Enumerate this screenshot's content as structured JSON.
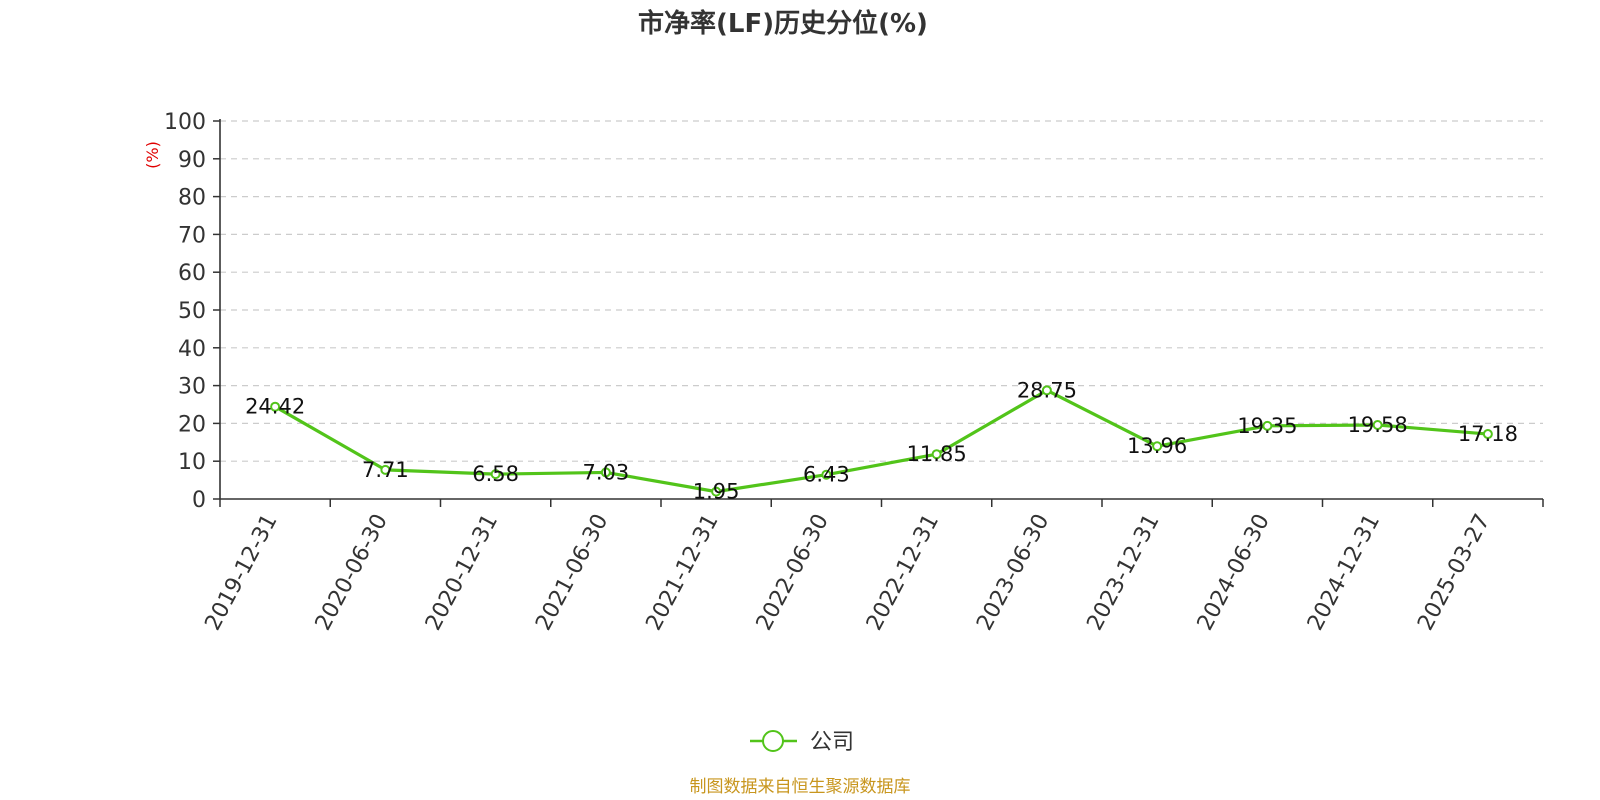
{
  "chart_data": {
    "type": "line",
    "title": "市净率(LF)历史分位(%)",
    "ylabel": "(%)",
    "xlabel": "",
    "ylim": [
      0,
      100
    ],
    "yticks": [
      "0",
      "10",
      "20",
      "30",
      "40",
      "50",
      "60",
      "70",
      "80",
      "90",
      "100"
    ],
    "grid": true,
    "legend_position": "bottom-center",
    "categories": [
      "2019-12-31",
      "2020-06-30",
      "2020-12-31",
      "2021-06-30",
      "2021-12-31",
      "2022-06-30",
      "2022-12-31",
      "2023-06-30",
      "2023-12-31",
      "2024-06-30",
      "2024-12-31",
      "2025-03-27"
    ],
    "series": [
      {
        "name": "公司",
        "color": "#52c41a",
        "values": [
          24.42,
          7.71,
          6.58,
          7.03,
          1.95,
          6.43,
          11.85,
          28.75,
          13.96,
          19.35,
          19.58,
          17.18
        ],
        "labels": [
          "24.42",
          "7.71",
          "6.58",
          "7.03",
          "1.95",
          "6.43",
          "11.85",
          "28.75",
          "13.96",
          "19.35",
          "19.58",
          "17.18"
        ]
      }
    ]
  },
  "footer": {
    "source_text": "制图数据来自恒生聚源数据库",
    "source_color": "#c8961e"
  },
  "colors": {
    "unit_label": "#e00000",
    "grid": "#cccccc",
    "axis": "#333333"
  }
}
